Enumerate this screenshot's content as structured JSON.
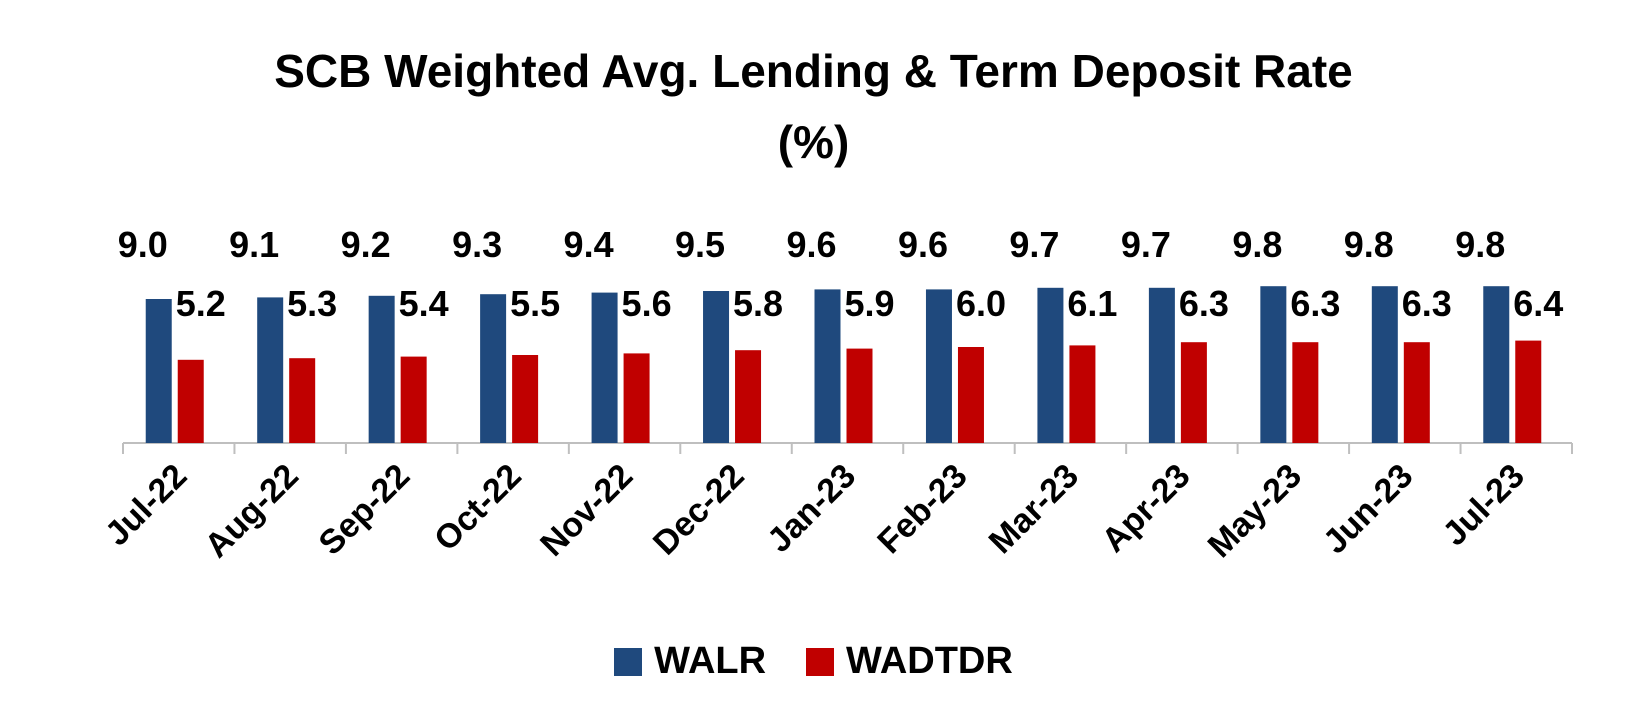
{
  "chart_data": {
    "type": "bar",
    "title": "SCB Weighted Avg. Lending & Term Deposit Rate",
    "subtitle": "(%)",
    "xlabel": "",
    "ylabel": "",
    "categories": [
      "Jul-22",
      "Aug-22",
      "Sep-22",
      "Oct-22",
      "Nov-22",
      "Dec-22",
      "Jan-23",
      "Feb-23",
      "Mar-23",
      "Apr-23",
      "May-23",
      "Jun-23",
      "Jul-23"
    ],
    "series": [
      {
        "name": "WALR",
        "color": "#1F497D",
        "values": [
          9.0,
          9.1,
          9.2,
          9.3,
          9.4,
          9.5,
          9.6,
          9.6,
          9.7,
          9.7,
          9.8,
          9.8,
          9.8
        ],
        "labels": [
          "9.0",
          "9.1",
          "9.2",
          "9.3",
          "9.4",
          "9.5",
          "9.6",
          "9.6",
          "9.7",
          "9.7",
          "9.8",
          "9.8",
          "9.8"
        ]
      },
      {
        "name": "WADTDR",
        "color": "#C00000",
        "values": [
          5.2,
          5.3,
          5.4,
          5.5,
          5.6,
          5.8,
          5.9,
          6.0,
          6.1,
          6.3,
          6.3,
          6.3,
          6.4
        ],
        "labels": [
          "5.2",
          "5.3",
          "5.4",
          "5.5",
          "5.6",
          "5.8",
          "5.9",
          "6.0",
          "6.1",
          "6.3",
          "6.3",
          "6.3",
          "6.4"
        ]
      }
    ],
    "legend_position": "bottom",
    "grid": false
  }
}
